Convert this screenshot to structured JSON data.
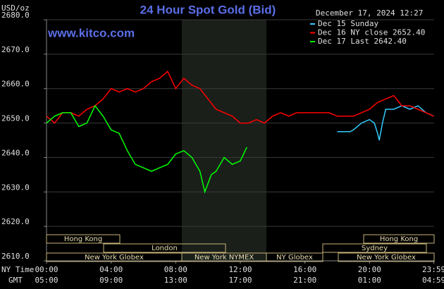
{
  "chart_data": {
    "type": "line",
    "title": "24 Hour Spot Gold (Bid)",
    "y_label": "USD/oz",
    "watermark": "www.kitco.com",
    "timestamp": "December 17, 2024 12:27",
    "x_axis_names": [
      "NY Time",
      "GMT"
    ],
    "xlim": [
      0,
      24
    ],
    "xticks": [
      {
        "value": 0,
        "label": "00:00"
      },
      {
        "value": 4,
        "label": "04:00"
      },
      {
        "value": 8,
        "label": "08:00"
      },
      {
        "value": 12,
        "label": "12:00"
      },
      {
        "value": 16,
        "label": "16:00"
      },
      {
        "value": 20,
        "label": "20:00"
      },
      {
        "value": 23.98,
        "label": "23:59"
      }
    ],
    "gmt_labels": [
      "05:00",
      "09:00",
      "13:00",
      "17:00",
      "21:00",
      "01:00",
      "04:59"
    ],
    "ylim": [
      2610,
      2680
    ],
    "yticks": [
      {
        "value": 2610,
        "label": "2610.0"
      },
      {
        "value": 2620,
        "label": "2620.0"
      },
      {
        "value": 2630,
        "label": "2630.0"
      },
      {
        "value": 2640,
        "label": "2640.0"
      },
      {
        "value": 2650,
        "label": "2650.0"
      },
      {
        "value": 2660,
        "label": "2660.0"
      },
      {
        "value": 2670,
        "label": "2670.0"
      },
      {
        "value": 2680,
        "label": "2680.0"
      }
    ],
    "grid": true,
    "sessions": [
      "Hong Kong",
      "Hong Kong",
      "London",
      "Sydney",
      "New York Globex",
      "New York NYMEX",
      "NY Globex",
      "New York Globex"
    ],
    "series": [
      {
        "name": "Dec 15 Sunday",
        "color": "#33ccff",
        "x": [
          18,
          18.5,
          18.8,
          19,
          19.5,
          20,
          20.3,
          20.5,
          20.6,
          20.8,
          21,
          21.5,
          22,
          22.5,
          23,
          23.5,
          23.98
        ],
        "values": [
          2647.5,
          2647.5,
          2647.5,
          2648,
          2650,
          2651,
          2650,
          2647,
          2645,
          2650,
          2654,
          2654,
          2655,
          2654,
          2655,
          2653,
          2652
        ]
      },
      {
        "name": "Dec 16 NY close 2652.40",
        "color": "#ff0000",
        "x": [
          0,
          0.5,
          1,
          1.5,
          2,
          2.5,
          3,
          3.5,
          4,
          4.5,
          5,
          5.5,
          6,
          6.5,
          7,
          7.5,
          8,
          8.5,
          9,
          9.5,
          10,
          10.5,
          11,
          11.5,
          12,
          12.5,
          13,
          13.5,
          14,
          14.5,
          15,
          15.5,
          16,
          16.5,
          17,
          17.5,
          18,
          18.5,
          19,
          19.5,
          20,
          20.5,
          21,
          21.5,
          22,
          22.5,
          23,
          23.5,
          23.98
        ],
        "values": [
          2652,
          2650,
          2653,
          2653,
          2652,
          2654,
          2655,
          2657,
          2660,
          2659,
          2660,
          2659,
          2660,
          2662,
          2663,
          2665,
          2660,
          2663,
          2661,
          2660,
          2657,
          2654,
          2653,
          2652,
          2650,
          2650,
          2651,
          2650,
          2652,
          2653,
          2652,
          2653,
          2653,
          2653,
          2653,
          2653,
          2652,
          2652,
          2652,
          2653,
          2654,
          2656,
          2657,
          2658,
          2655,
          2655,
          2654,
          2653,
          2652
        ]
      },
      {
        "name": "Dec 17 Last 2642.40",
        "color": "#00ff00",
        "x": [
          0,
          0.5,
          1,
          1.5,
          2,
          2.5,
          3,
          3.5,
          4,
          4.5,
          5,
          5.5,
          6,
          6.5,
          7,
          7.5,
          8,
          8.5,
          9,
          9.5,
          9.8,
          10.2,
          10.5,
          11,
          11.5,
          12,
          12.4
        ],
        "values": [
          2650,
          2652,
          2653,
          2653,
          2649,
          2650,
          2655,
          2652,
          2648,
          2647,
          2642,
          2638,
          2637,
          2636,
          2637,
          2638,
          2641,
          2642,
          2640,
          2636,
          2630,
          2635,
          2636,
          2640,
          2638,
          2639,
          2643
        ]
      }
    ]
  }
}
